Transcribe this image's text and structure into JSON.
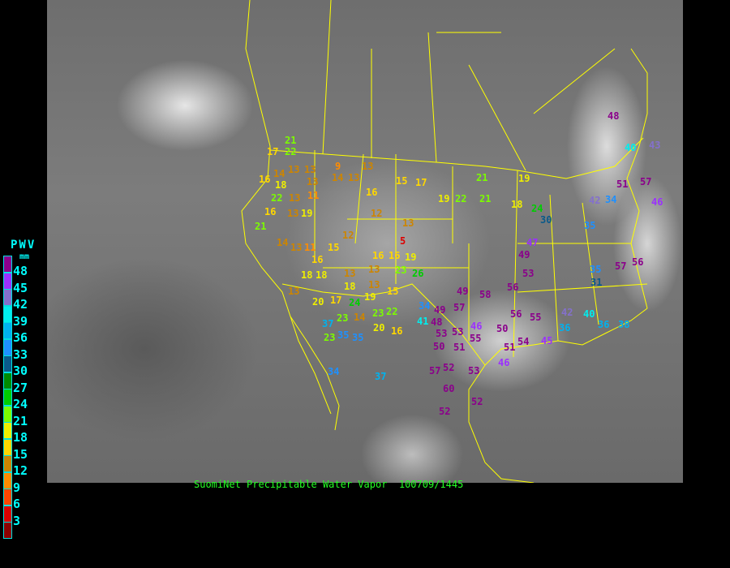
{
  "caption": "SuomiNet Precipitable Water Vapor  100709/1445",
  "legend": {
    "title": "PWV",
    "unit": "mm",
    "bins": [
      {
        "label": "48",
        "color": "#8b008b"
      },
      {
        "label": "45",
        "color": "#9b30ff"
      },
      {
        "label": "42",
        "color": "#8470cc"
      },
      {
        "label": "39",
        "color": "#00eeee"
      },
      {
        "label": "36",
        "color": "#00b2ee"
      },
      {
        "label": "33",
        "color": "#1e90ff"
      },
      {
        "label": "30",
        "color": "#0a5a8a"
      },
      {
        "label": "27",
        "color": "#008b00"
      },
      {
        "label": "24",
        "color": "#00cd00"
      },
      {
        "label": "21",
        "color": "#7cfc00"
      },
      {
        "label": "18",
        "color": "#eeee00"
      },
      {
        "label": "15",
        "color": "#ffd700"
      },
      {
        "label": "12",
        "color": "#cd8500"
      },
      {
        "label": "9",
        "color": "#ff8c00"
      },
      {
        "label": "6",
        "color": "#ff4500"
      },
      {
        "label": "3",
        "color": "#dd0000"
      },
      {
        "label": "",
        "color": "#8b0000"
      }
    ]
  },
  "stations": [
    "22",
    "17",
    "16",
    "13",
    "13",
    "13",
    "9",
    "13",
    "14",
    "13",
    "18",
    "14",
    "22",
    "13",
    "11",
    "19",
    "12",
    "13",
    "16",
    "15",
    "17",
    "19",
    "22",
    "21",
    "16",
    "13",
    "14",
    "12",
    "21",
    "13",
    "11",
    "15",
    "16",
    "13",
    "13",
    "16",
    "5",
    "19",
    "18",
    "18",
    "18",
    "16",
    "13",
    "23",
    "26",
    "19",
    "15",
    "13",
    "20",
    "17",
    "24",
    "14",
    "23",
    "22",
    "20",
    "16",
    "23",
    "23",
    "35",
    "35",
    "37",
    "34",
    "41",
    "34",
    "53",
    "49",
    "57",
    "48",
    "53",
    "50",
    "51",
    "55",
    "52",
    "46",
    "57",
    "60",
    "53",
    "52",
    "37",
    "52",
    "46",
    "51",
    "54",
    "56",
    "50",
    "55",
    "56",
    "58",
    "49",
    "47",
    "49",
    "53",
    "35",
    "42",
    "45",
    "36",
    "40",
    "36",
    "38",
    "31",
    "21",
    "18",
    "34",
    "48",
    "40",
    "43",
    "46",
    "51",
    "57",
    "57",
    "56",
    "42",
    "35",
    "30",
    "24",
    "19",
    "21"
  ]
}
